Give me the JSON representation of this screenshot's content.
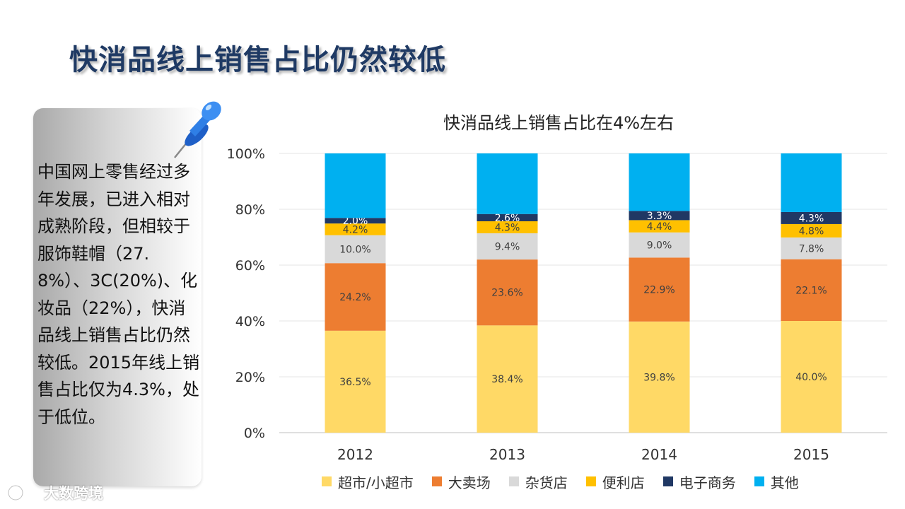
{
  "slide": {
    "title": "快消品线上销售占比仍然较低",
    "note": "中国网上零售经过多年发展，已进入相对成熟阶段，但相较于服饰鞋帽（27.8%）、3C(20%)、化妆品（22%），快消品线上销售占比仍然较低。2015年线上销售占比仅为4.3%，处于低位。",
    "watermark": "大数跨境",
    "icons": {
      "pin": "pushpin-icon",
      "watermark_logo": "logo-icon"
    }
  },
  "chart_data": {
    "type": "bar",
    "stacked": "percent",
    "title": "快消品线上销售占比在4%左右",
    "categories": [
      "2012",
      "2013",
      "2014",
      "2015"
    ],
    "y_ticks": [
      "0%",
      "20%",
      "40%",
      "60%",
      "80%",
      "100%"
    ],
    "ylim": [
      0,
      100
    ],
    "grid": true,
    "legend_position": "bottom",
    "series": [
      {
        "name": "超市/小超市",
        "color": "#ffd966",
        "values": [
          36.5,
          38.4,
          39.8,
          40.0
        ],
        "labels": [
          "36.5%",
          "38.4%",
          "39.8%",
          "40.0%"
        ]
      },
      {
        "name": "大卖场",
        "color": "#ed7d31",
        "values": [
          24.2,
          23.6,
          22.9,
          22.1
        ],
        "labels": [
          "24.2%",
          "23.6%",
          "22.9%",
          "22.1%"
        ]
      },
      {
        "name": "杂货店",
        "color": "#d9d9d9",
        "values": [
          10.0,
          9.4,
          9.0,
          7.8
        ],
        "labels": [
          "10.0%",
          "9.4%",
          "9.0%",
          "7.8%"
        ]
      },
      {
        "name": "便利店",
        "color": "#ffc000",
        "values": [
          4.2,
          4.3,
          4.4,
          4.8
        ],
        "labels": [
          "4.2%",
          "4.3%",
          "4.4%",
          "4.8%"
        ]
      },
      {
        "name": "电子商务",
        "color": "#203864",
        "values": [
          2.0,
          2.6,
          3.3,
          4.3
        ],
        "labels": [
          "2.0%",
          "2.6%",
          "3.3%",
          "4.3%"
        ]
      },
      {
        "name": "其他",
        "color": "#00b0f0",
        "values": [
          23.1,
          21.7,
          20.6,
          21.0
        ]
      }
    ]
  }
}
